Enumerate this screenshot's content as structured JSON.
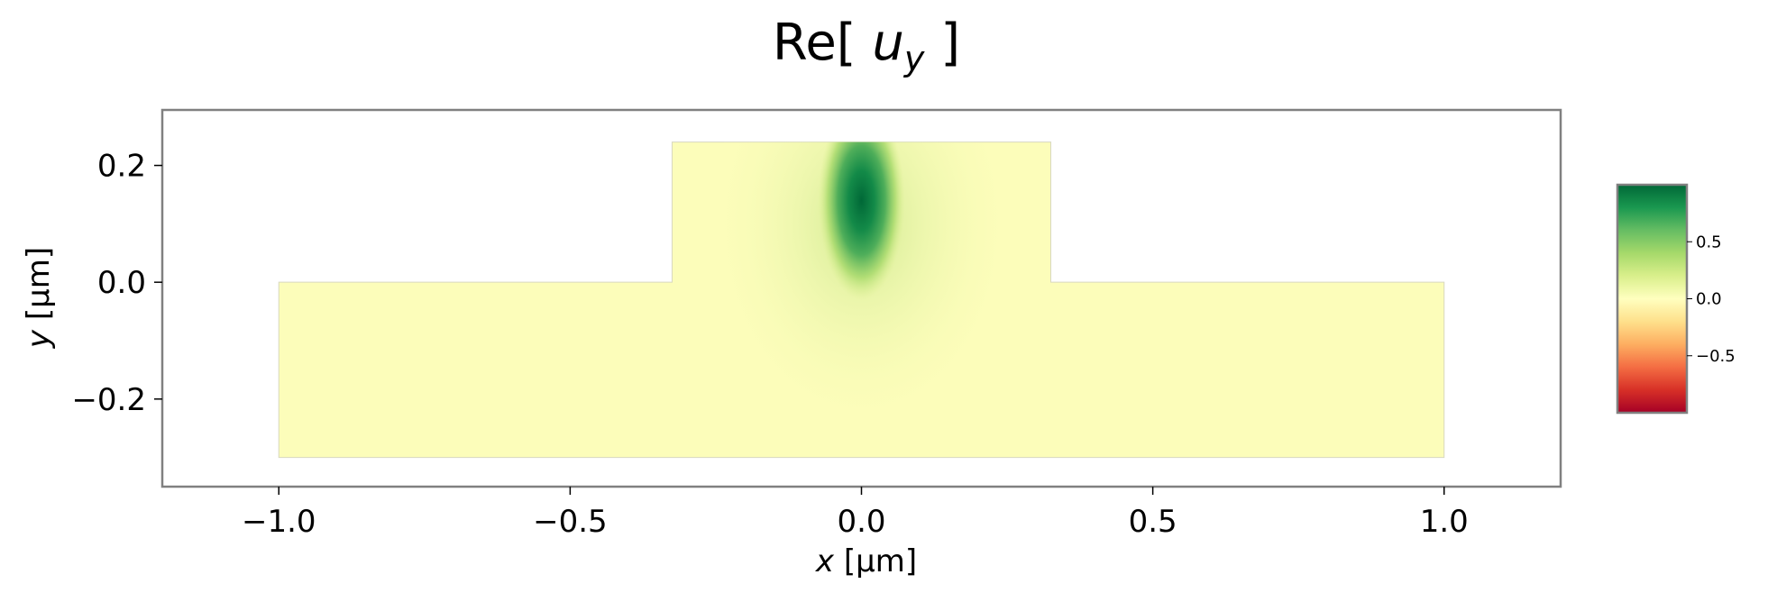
{
  "chart_data": {
    "type": "heatmap",
    "title_prefix": "Re[ ",
    "title_var": "u",
    "title_sub": "y",
    "title_suffix": " ]",
    "xlabel_var": "x",
    "xlabel_unit": " [µm]",
    "ylabel_var": "y",
    "ylabel_unit": " [µm]",
    "xlim": [
      -1.2,
      1.2
    ],
    "ylim": [
      -0.35,
      0.295
    ],
    "x_ticks": [
      -1.0,
      -0.5,
      0.0,
      0.5,
      1.0
    ],
    "x_tick_labels": [
      "−1.0",
      "−0.5",
      "0.0",
      "0.5",
      "1.0"
    ],
    "y_ticks": [
      -0.2,
      0.0,
      0.2
    ],
    "y_tick_labels": [
      "−0.2",
      "0.0",
      "0.2"
    ],
    "grid": false,
    "colormap": "RdYlGn",
    "colorbar": {
      "range": [
        -1.0,
        1.0
      ],
      "ticks": [
        -0.5,
        0.0,
        0.5
      ],
      "tick_labels": [
        "−0.5",
        "0.0",
        "0.5"
      ],
      "placement": "right"
    },
    "domain": {
      "slab": {
        "x": [
          -1.0,
          1.0
        ],
        "y": [
          -0.3,
          0.0
        ]
      },
      "ridge": {
        "x": [
          -0.325,
          0.325
        ],
        "y": [
          0.0,
          0.24
        ]
      }
    },
    "field_peak": {
      "x": 0.0,
      "y": 0.14,
      "value": 0.98
    }
  }
}
